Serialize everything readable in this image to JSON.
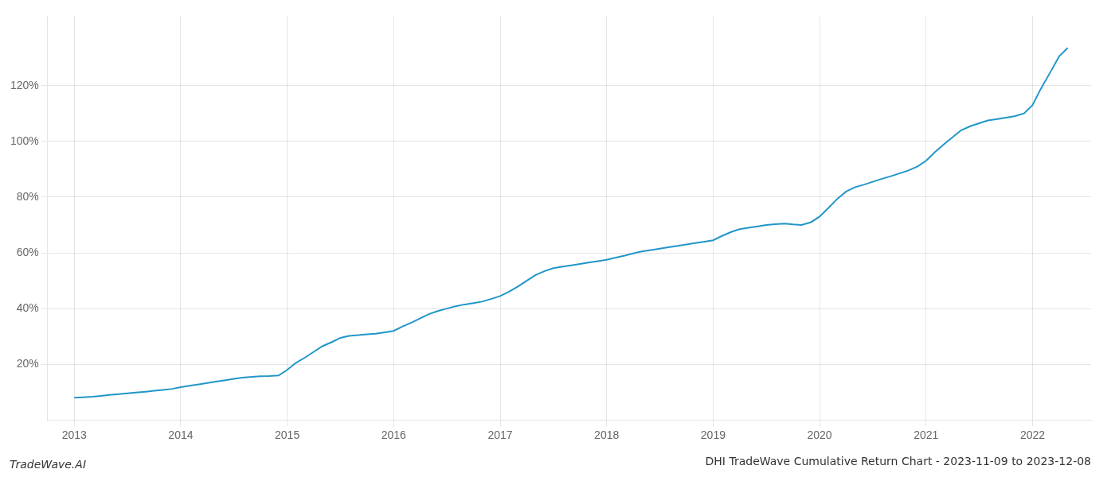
{
  "chart_data": {
    "type": "line",
    "title": "DHI TradeWave Cumulative Return Chart - 2023-11-09 to 2023-12-08",
    "annotations": [
      "TradeWave.AI"
    ],
    "color": "#2196c8",
    "grid": true,
    "x": [
      2013.0,
      2013.08,
      2013.17,
      2013.25,
      2013.33,
      2013.42,
      2013.5,
      2013.58,
      2013.67,
      2013.75,
      2013.83,
      2013.92,
      2014.0,
      2014.08,
      2014.17,
      2014.25,
      2014.33,
      2014.42,
      2014.5,
      2014.58,
      2014.67,
      2014.75,
      2014.83,
      2014.92,
      2015.0,
      2015.08,
      2015.17,
      2015.25,
      2015.33,
      2015.42,
      2015.5,
      2015.58,
      2015.67,
      2015.75,
      2015.83,
      2015.92,
      2016.0,
      2016.08,
      2016.17,
      2016.25,
      2016.33,
      2016.42,
      2016.5,
      2016.58,
      2016.67,
      2016.75,
      2016.83,
      2016.92,
      2017.0,
      2017.08,
      2017.17,
      2017.25,
      2017.33,
      2017.42,
      2017.5,
      2017.58,
      2017.67,
      2017.75,
      2017.83,
      2017.92,
      2018.0,
      2018.08,
      2018.17,
      2018.25,
      2018.33,
      2018.42,
      2018.5,
      2018.58,
      2018.67,
      2018.75,
      2018.83,
      2018.92,
      2019.0,
      2019.08,
      2019.17,
      2019.25,
      2019.33,
      2019.42,
      2019.5,
      2019.58,
      2019.67,
      2019.75,
      2019.83,
      2019.92,
      2020.0,
      2020.08,
      2020.17,
      2020.25,
      2020.33,
      2020.42,
      2020.5,
      2020.58,
      2020.67,
      2020.75,
      2020.83,
      2020.92,
      2021.0,
      2021.08,
      2021.17,
      2021.25,
      2021.33,
      2021.42,
      2021.5,
      2021.58,
      2021.67,
      2021.75,
      2021.83,
      2021.92,
      2022.0,
      2022.08,
      2022.17,
      2022.25,
      2022.33
    ],
    "values": [
      8.0,
      8.2,
      8.4,
      8.7,
      9.0,
      9.3,
      9.6,
      9.9,
      10.2,
      10.5,
      10.8,
      11.2,
      11.8,
      12.3,
      12.8,
      13.3,
      13.8,
      14.3,
      14.8,
      15.2,
      15.5,
      15.7,
      15.8,
      16.0,
      18.0,
      20.5,
      22.5,
      24.5,
      26.5,
      28.0,
      29.5,
      30.2,
      30.5,
      30.8,
      31.0,
      31.5,
      32.0,
      33.5,
      35.0,
      36.5,
      38.0,
      39.2,
      40.0,
      40.8,
      41.5,
      42.0,
      42.5,
      43.5,
      44.5,
      46.0,
      48.0,
      50.0,
      52.0,
      53.5,
      54.5,
      55.0,
      55.5,
      56.0,
      56.5,
      57.0,
      57.5,
      58.2,
      59.0,
      59.8,
      60.5,
      61.0,
      61.5,
      62.0,
      62.5,
      63.0,
      63.5,
      64.0,
      64.5,
      66.0,
      67.5,
      68.5,
      69.0,
      69.5,
      70.0,
      70.3,
      70.5,
      70.2,
      70.0,
      71.0,
      73.0,
      76.0,
      79.5,
      82.0,
      83.5,
      84.5,
      85.5,
      86.5,
      87.5,
      88.5,
      89.5,
      91.0,
      93.0,
      96.0,
      99.0,
      101.5,
      104.0,
      105.5,
      106.5,
      107.5,
      108.0,
      108.5,
      109.0,
      110.0,
      113.0,
      119.0,
      125.0,
      130.5,
      133.5
    ],
    "xlim": [
      2012.75,
      2022.55
    ],
    "ylim": [
      0,
      145
    ],
    "xticks": [
      2013,
      2014,
      2015,
      2016,
      2017,
      2018,
      2019,
      2020,
      2021,
      2022
    ],
    "yticks": [
      {
        "value": 20,
        "label": "20%"
      },
      {
        "value": 40,
        "label": "40%"
      },
      {
        "value": 60,
        "label": "60%"
      },
      {
        "value": 80,
        "label": "80%"
      },
      {
        "value": 100,
        "label": "100%"
      },
      {
        "value": 120,
        "label": "120%"
      }
    ]
  }
}
